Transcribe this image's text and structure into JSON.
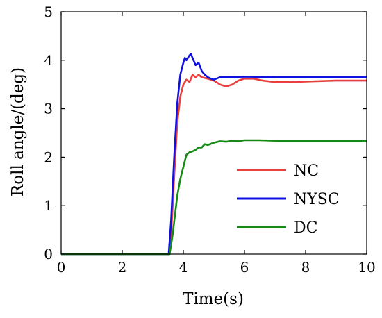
{
  "chart_data": {
    "type": "line",
    "title": "",
    "xlabel": "Time(s)",
    "ylabel": "Roll angle/(deg)",
    "xlim": [
      0,
      10
    ],
    "ylim": [
      0,
      5
    ],
    "x_ticks": [
      "0",
      "2",
      "4",
      "6",
      "8",
      "10"
    ],
    "y_ticks": [
      "0",
      "1",
      "2",
      "3",
      "4",
      "5"
    ],
    "grid": false,
    "legend_position": "lower-right",
    "series": [
      {
        "name": "NC",
        "color": "#e8403c",
        "points": [
          [
            0,
            0
          ],
          [
            3.52,
            0
          ],
          [
            3.6,
            0.4
          ],
          [
            3.7,
            1.6
          ],
          [
            3.8,
            2.7
          ],
          [
            3.9,
            3.25
          ],
          [
            4.0,
            3.5
          ],
          [
            4.1,
            3.6
          ],
          [
            4.2,
            3.55
          ],
          [
            4.3,
            3.7
          ],
          [
            4.4,
            3.65
          ],
          [
            4.5,
            3.7
          ],
          [
            4.6,
            3.65
          ],
          [
            4.8,
            3.62
          ],
          [
            5.0,
            3.58
          ],
          [
            5.2,
            3.5
          ],
          [
            5.4,
            3.46
          ],
          [
            5.6,
            3.5
          ],
          [
            5.8,
            3.58
          ],
          [
            6.0,
            3.62
          ],
          [
            6.3,
            3.62
          ],
          [
            6.6,
            3.58
          ],
          [
            7.0,
            3.55
          ],
          [
            7.5,
            3.55
          ],
          [
            8.0,
            3.56
          ],
          [
            9.0,
            3.58
          ],
          [
            10.0,
            3.58
          ]
        ]
      },
      {
        "name": "NYSC",
        "color": "#1010e0",
        "points": [
          [
            0,
            0
          ],
          [
            3.52,
            0
          ],
          [
            3.6,
            0.7
          ],
          [
            3.7,
            2.0
          ],
          [
            3.8,
            3.1
          ],
          [
            3.9,
            3.7
          ],
          [
            4.0,
            3.95
          ],
          [
            4.05,
            4.05
          ],
          [
            4.1,
            4.0
          ],
          [
            4.2,
            4.1
          ],
          [
            4.25,
            4.13
          ],
          [
            4.3,
            4.05
          ],
          [
            4.4,
            3.9
          ],
          [
            4.5,
            3.95
          ],
          [
            4.6,
            3.78
          ],
          [
            4.7,
            3.7
          ],
          [
            4.8,
            3.65
          ],
          [
            4.9,
            3.62
          ],
          [
            5.0,
            3.6
          ],
          [
            5.2,
            3.65
          ],
          [
            5.5,
            3.65
          ],
          [
            6.0,
            3.66
          ],
          [
            7.0,
            3.65
          ],
          [
            8.0,
            3.65
          ],
          [
            10.0,
            3.65
          ]
        ]
      },
      {
        "name": "DC",
        "color": "#158a15",
        "points": [
          [
            0,
            0
          ],
          [
            3.55,
            0
          ],
          [
            3.65,
            0.4
          ],
          [
            3.8,
            1.2
          ],
          [
            3.9,
            1.55
          ],
          [
            4.0,
            1.8
          ],
          [
            4.1,
            2.05
          ],
          [
            4.2,
            2.1
          ],
          [
            4.3,
            2.12
          ],
          [
            4.4,
            2.15
          ],
          [
            4.5,
            2.2
          ],
          [
            4.6,
            2.2
          ],
          [
            4.7,
            2.27
          ],
          [
            4.8,
            2.25
          ],
          [
            5.0,
            2.3
          ],
          [
            5.2,
            2.33
          ],
          [
            5.4,
            2.32
          ],
          [
            5.6,
            2.34
          ],
          [
            5.8,
            2.33
          ],
          [
            6.0,
            2.35
          ],
          [
            6.5,
            2.35
          ],
          [
            7.0,
            2.34
          ],
          [
            8.0,
            2.34
          ],
          [
            10.0,
            2.34
          ]
        ]
      }
    ]
  }
}
